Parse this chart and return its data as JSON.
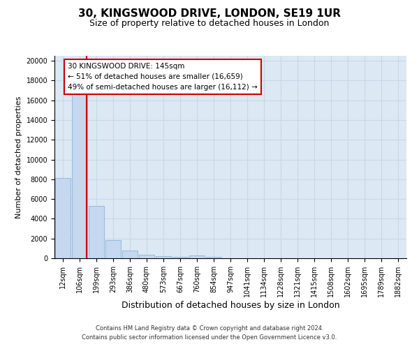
{
  "title1": "30, KINGSWOOD DRIVE, LONDON, SE19 1UR",
  "title2": "Size of property relative to detached houses in London",
  "xlabel": "Distribution of detached houses by size in London",
  "ylabel": "Number of detached properties",
  "categories": [
    "12sqm",
    "106sqm",
    "199sqm",
    "293sqm",
    "386sqm",
    "480sqm",
    "573sqm",
    "667sqm",
    "760sqm",
    "854sqm",
    "947sqm",
    "1041sqm",
    "1134sqm",
    "1228sqm",
    "1321sqm",
    "1415sqm",
    "1508sqm",
    "1602sqm",
    "1695sqm",
    "1789sqm",
    "1882sqm"
  ],
  "values": [
    8100,
    16600,
    5300,
    1820,
    750,
    330,
    230,
    175,
    270,
    130,
    0,
    0,
    0,
    0,
    0,
    0,
    0,
    0,
    0,
    0,
    0
  ],
  "bar_color": "#c5d8ef",
  "bar_edge_color": "#8ab4d8",
  "vline_color": "#cc0000",
  "vline_x": 1.425,
  "annotation_line1": "30 KINGSWOOD DRIVE: 145sqm",
  "annotation_line2": "← 51% of detached houses are smaller (16,659)",
  "annotation_line3": "49% of semi-detached houses are larger (16,112) →",
  "ann_box_edge": "#cc0000",
  "ann_box_face": "#ffffff",
  "ylim_max": 20500,
  "yticks": [
    0,
    2000,
    4000,
    6000,
    8000,
    10000,
    12000,
    14000,
    16000,
    18000,
    20000
  ],
  "grid_color": "#c8d8e8",
  "bg_color": "#dce8f4",
  "title1_fontsize": 11,
  "title2_fontsize": 9,
  "ylabel_fontsize": 8,
  "xlabel_fontsize": 9,
  "tick_fontsize": 7,
  "footer1": "Contains HM Land Registry data © Crown copyright and database right 2024.",
  "footer2": "Contains public sector information licensed under the Open Government Licence v3.0."
}
